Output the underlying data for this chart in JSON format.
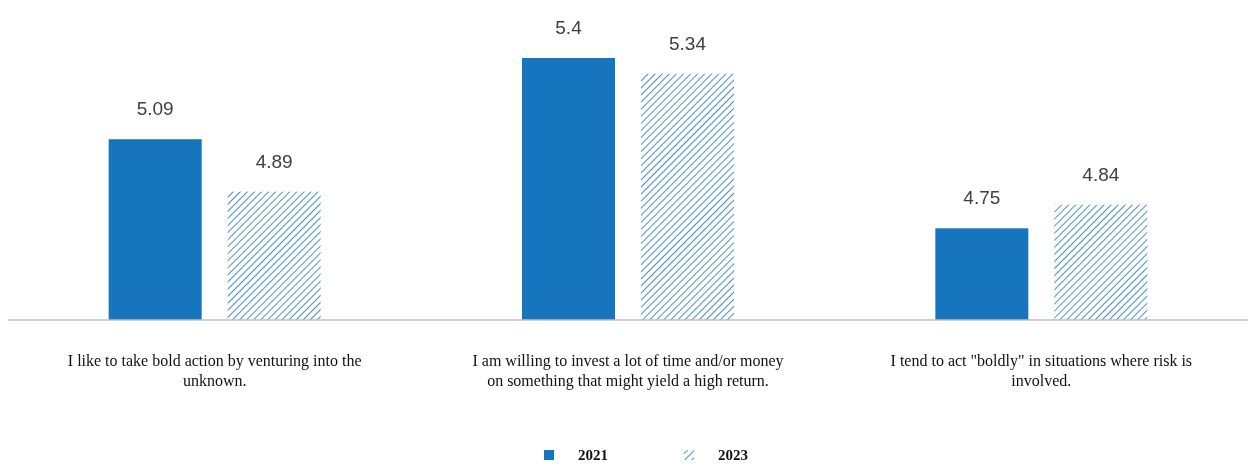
{
  "chart_data": {
    "type": "bar",
    "categories": [
      "I like to take bold action by venturing into the unknown.",
      "I am willing to invest a lot of time and/or money on something that might yield a high return.",
      "I tend to act \"boldly\" in situations where risk is involved."
    ],
    "series": [
      {
        "name": "2021",
        "color": "#1775bd",
        "values": [
          5.09,
          5.4,
          4.75
        ]
      },
      {
        "name": "2023",
        "color": "#1775bd",
        "values": [
          4.89,
          5.34,
          4.84
        ]
      }
    ],
    "ylim": [
      4.4,
      5.4
    ],
    "tick_labels": "x",
    "data_labels": true,
    "legend": "bottom"
  }
}
